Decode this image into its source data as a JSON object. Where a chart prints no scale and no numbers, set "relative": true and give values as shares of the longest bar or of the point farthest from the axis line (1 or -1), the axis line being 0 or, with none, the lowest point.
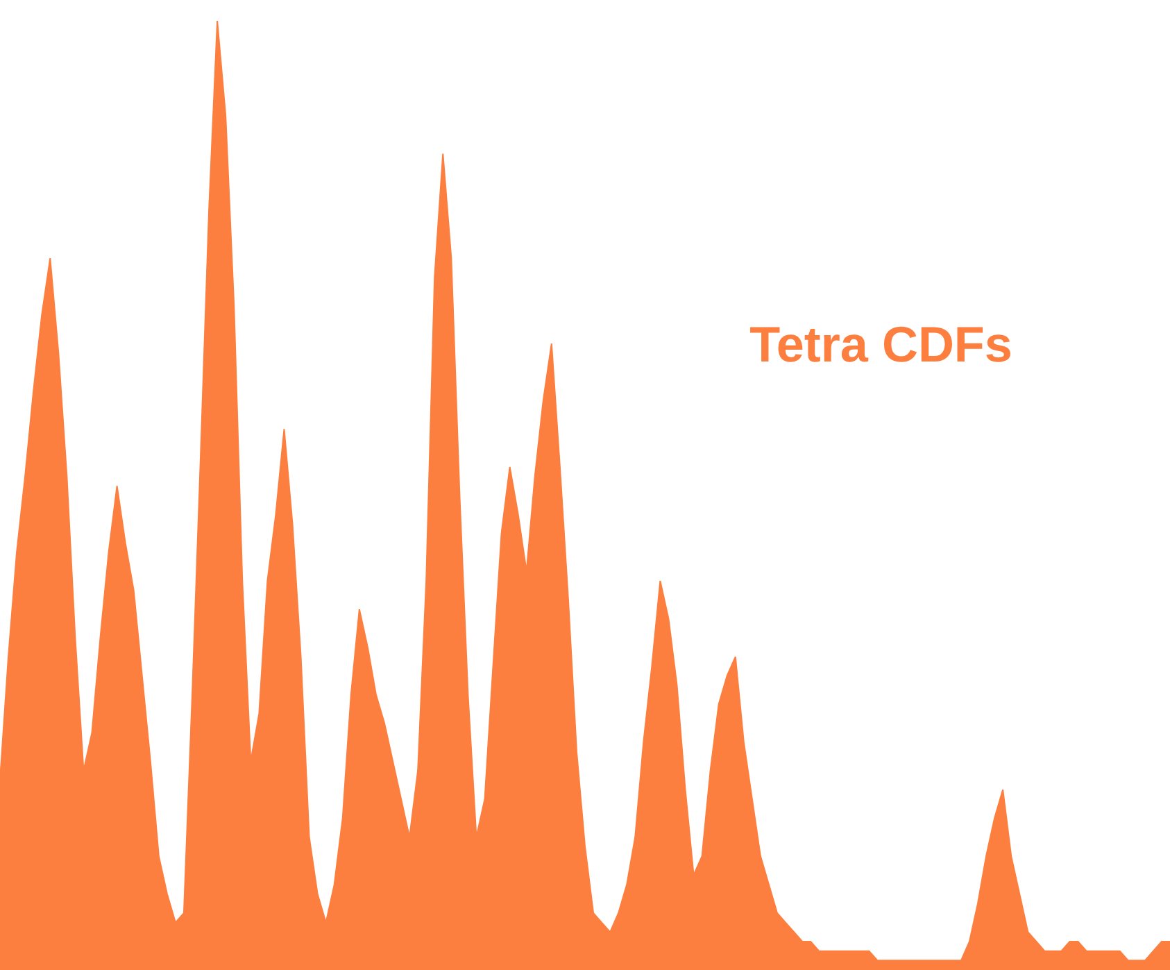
{
  "chart_data": {
    "type": "area",
    "title": "Tetra CDFs",
    "relative": true,
    "tick_labels": false,
    "legend": false,
    "categories": [
      null,
      null,
      null,
      null,
      null,
      null,
      null,
      null,
      null,
      null,
      null,
      null,
      null,
      null,
      null,
      null,
      null,
      null,
      null,
      null,
      null,
      null,
      null,
      null,
      null,
      null,
      null,
      null,
      null,
      null,
      null,
      null,
      null,
      null,
      null,
      null,
      null,
      null,
      null,
      null,
      null,
      null,
      null,
      null,
      null,
      null,
      null,
      null,
      null,
      null,
      null,
      null,
      null,
      null,
      null,
      null,
      null,
      null,
      null,
      null,
      null,
      null,
      null,
      null,
      null,
      null,
      null,
      null,
      null,
      null,
      null,
      null,
      null,
      null,
      null,
      null,
      null,
      null,
      null,
      null,
      null,
      null,
      null,
      null,
      null,
      null,
      null,
      null,
      null,
      null,
      null,
      null,
      null,
      null,
      null,
      null,
      null,
      null,
      null,
      null,
      null,
      null,
      null,
      null,
      null,
      null,
      null,
      null,
      null,
      null,
      null,
      null,
      null,
      null,
      null,
      null,
      null,
      null,
      null,
      null,
      null,
      null,
      null,
      null,
      null,
      null,
      null,
      null,
      null,
      null,
      null,
      null,
      null,
      null,
      null,
      null,
      null,
      null,
      null,
      null,
      null
    ],
    "series": [
      {
        "color": "#fd7f3f",
        "values": [
          0.2,
          0.33,
          0.44,
          0.52,
          0.61,
          0.69,
          0.75,
          0.65,
          0.52,
          0.35,
          0.21,
          0.25,
          0.35,
          0.44,
          0.51,
          0.45,
          0.4,
          0.31,
          0.22,
          0.12,
          0.08,
          0.05,
          0.06,
          0.29,
          0.54,
          0.8,
          1.0,
          0.9,
          0.7,
          0.41,
          0.22,
          0.27,
          0.41,
          0.48,
          0.57,
          0.47,
          0.33,
          0.14,
          0.08,
          0.05,
          0.09,
          0.16,
          0.29,
          0.38,
          0.34,
          0.29,
          0.26,
          0.22,
          0.18,
          0.14,
          0.21,
          0.41,
          0.73,
          0.86,
          0.75,
          0.5,
          0.29,
          0.14,
          0.18,
          0.32,
          0.46,
          0.53,
          0.48,
          0.42,
          0.52,
          0.6,
          0.66,
          0.53,
          0.39,
          0.23,
          0.13,
          0.06,
          0.05,
          0.04,
          0.06,
          0.09,
          0.14,
          0.24,
          0.32,
          0.41,
          0.37,
          0.3,
          0.19,
          0.1,
          0.12,
          0.21,
          0.28,
          0.31,
          0.33,
          0.24,
          0.18,
          0.12,
          0.09,
          0.06,
          0.05,
          0.04,
          0.03,
          0.03,
          0.02,
          0.02,
          0.02,
          0.02,
          0.02,
          0.02,
          0.02,
          0.01,
          0.01,
          0.01,
          0.01,
          0.01,
          0.01,
          0.01,
          0.01,
          0.01,
          0.01,
          0.01,
          0.03,
          0.07,
          0.12,
          0.16,
          0.19,
          0.12,
          0.08,
          0.04,
          0.03,
          0.02,
          0.02,
          0.02,
          0.03,
          0.03,
          0.02,
          0.02,
          0.02,
          0.02,
          0.02,
          0.01,
          0.01,
          0.01,
          0.02,
          0.03,
          0.03
        ]
      }
    ]
  }
}
